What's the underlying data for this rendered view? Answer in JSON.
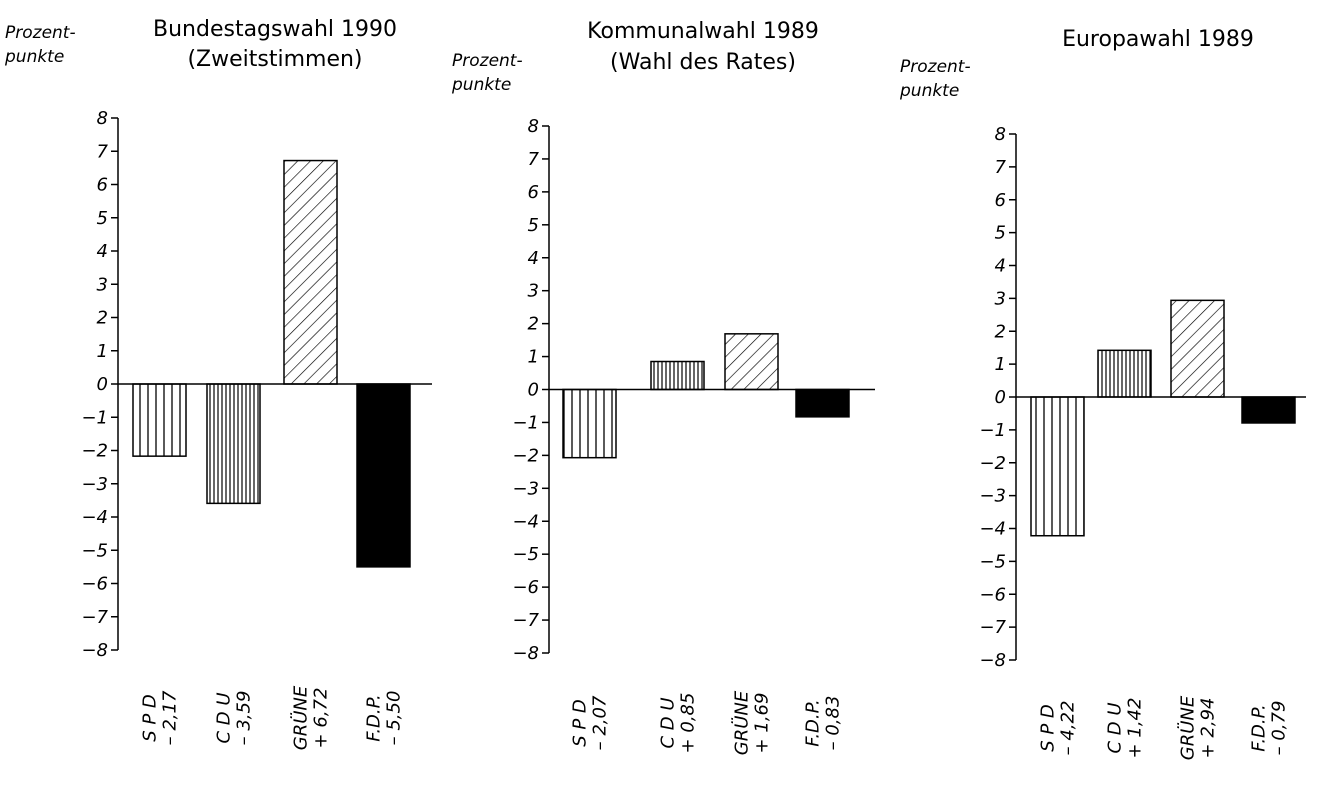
{
  "chart_data": [
    {
      "type": "bar",
      "title": [
        "Bundestagswahl 1990",
        "(Zweitstimmen)"
      ],
      "yunit": [
        "Prozent-",
        "punkte"
      ],
      "ylim": [
        -8,
        8
      ],
      "yticks": [
        8,
        7,
        6,
        5,
        4,
        3,
        2,
        1,
        0,
        -1,
        -2,
        -3,
        -4,
        -5,
        -6,
        -7,
        -8
      ],
      "categories": [
        "S P D",
        "C D U",
        "GRÜNE",
        "F.D.P."
      ],
      "value_labels": [
        "– 2,17",
        "– 3,59",
        "+ 6,72",
        "– 5,50"
      ],
      "values": [
        -2.17,
        -3.59,
        6.72,
        -5.5
      ],
      "fills": [
        "vertical-hatch",
        "dense-vertical-hatch",
        "diagonal-hatch",
        "solid"
      ]
    },
    {
      "type": "bar",
      "title": [
        "Kommunalwahl 1989",
        "(Wahl des Rates)"
      ],
      "yunit": [
        "Prozent-",
        "punkte"
      ],
      "ylim": [
        -8,
        8
      ],
      "yticks": [
        8,
        7,
        6,
        5,
        4,
        3,
        2,
        1,
        0,
        -1,
        -2,
        -3,
        -4,
        -5,
        -6,
        -7,
        -8
      ],
      "categories": [
        "S P D",
        "C D U",
        "GRÜNE",
        "F.D.P."
      ],
      "value_labels": [
        "– 2,07",
        "+ 0,85",
        "+ 1,69",
        "– 0,83"
      ],
      "values": [
        -2.07,
        0.85,
        1.69,
        -0.83
      ],
      "fills": [
        "vertical-hatch",
        "dense-vertical-hatch",
        "diagonal-hatch",
        "solid"
      ]
    },
    {
      "type": "bar",
      "title": [
        "Europawahl 1989"
      ],
      "yunit": [
        "Prozent-",
        "punkte"
      ],
      "ylim": [
        -8,
        8
      ],
      "yticks": [
        8,
        7,
        6,
        5,
        4,
        3,
        2,
        1,
        0,
        -1,
        -2,
        -3,
        -4,
        -5,
        -6,
        -7,
        -8
      ],
      "categories": [
        "S P D",
        "C D U",
        "GRÜNE",
        "F.D.P."
      ],
      "value_labels": [
        "– 4,22",
        "+ 1,42",
        "+ 2,94",
        "– 0,79"
      ],
      "values": [
        -4.22,
        1.42,
        2.94,
        -0.79
      ],
      "fills": [
        "vertical-hatch",
        "dense-vertical-hatch",
        "diagonal-hatch",
        "solid"
      ]
    }
  ]
}
